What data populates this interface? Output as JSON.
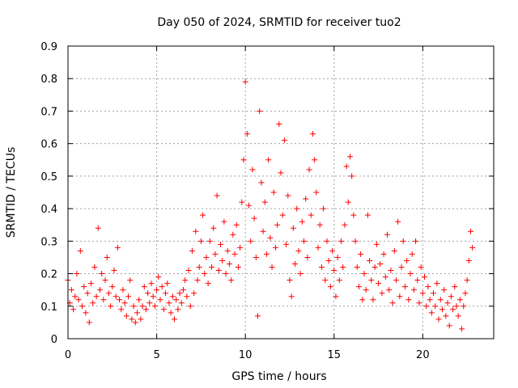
{
  "chart_data": {
    "type": "scatter",
    "title": "Day 050 of 2024, SRMTID for receiver tuo2",
    "xlabel": "GPS time / hours",
    "ylabel": "SRMTID / TECUs",
    "xlim": [
      0,
      24
    ],
    "ylim": [
      0,
      0.9
    ],
    "xticks": [
      0,
      5,
      10,
      15,
      20
    ],
    "xtick_labels": [
      "0",
      "5",
      "10",
      "15",
      "20"
    ],
    "yticks": [
      0,
      0.1,
      0.2,
      0.3,
      0.4,
      0.5,
      0.6,
      0.7,
      0.8,
      0.9
    ],
    "ytick_labels": [
      "0",
      "0.1",
      "0.2",
      "0.3",
      "0.4",
      "0.5",
      "0.6",
      "0.7",
      "0.8",
      "0.9"
    ],
    "grid": true,
    "marker": "+",
    "color": "#ff0000",
    "series": [
      {
        "name": "SRMTID",
        "points": [
          [
            0.0,
            0.18
          ],
          [
            0.1,
            0.11
          ],
          [
            0.2,
            0.15
          ],
          [
            0.3,
            0.09
          ],
          [
            0.4,
            0.13
          ],
          [
            0.5,
            0.2
          ],
          [
            0.6,
            0.12
          ],
          [
            0.7,
            0.27
          ],
          [
            0.8,
            0.1
          ],
          [
            0.9,
            0.16
          ],
          [
            1.0,
            0.08
          ],
          [
            1.1,
            0.14
          ],
          [
            1.2,
            0.05
          ],
          [
            1.3,
            0.17
          ],
          [
            1.4,
            0.11
          ],
          [
            1.5,
            0.22
          ],
          [
            1.6,
            0.13
          ],
          [
            1.7,
            0.34
          ],
          [
            1.8,
            0.15
          ],
          [
            1.9,
            0.2
          ],
          [
            2.0,
            0.12
          ],
          [
            2.1,
            0.18
          ],
          [
            2.2,
            0.25
          ],
          [
            2.3,
            0.14
          ],
          [
            2.4,
            0.1
          ],
          [
            2.5,
            0.16
          ],
          [
            2.6,
            0.21
          ],
          [
            2.7,
            0.13
          ],
          [
            2.8,
            0.28
          ],
          [
            2.9,
            0.12
          ],
          [
            3.0,
            0.09
          ],
          [
            3.1,
            0.15
          ],
          [
            3.2,
            0.11
          ],
          [
            3.3,
            0.07
          ],
          [
            3.4,
            0.13
          ],
          [
            3.5,
            0.18
          ],
          [
            3.6,
            0.06
          ],
          [
            3.7,
            0.1
          ],
          [
            3.8,
            0.05
          ],
          [
            3.9,
            0.08
          ],
          [
            4.0,
            0.12
          ],
          [
            4.1,
            0.06
          ],
          [
            4.2,
            0.1
          ],
          [
            4.3,
            0.16
          ],
          [
            4.4,
            0.09
          ],
          [
            4.5,
            0.14
          ],
          [
            4.6,
            0.11
          ],
          [
            4.7,
            0.17
          ],
          [
            4.8,
            0.13
          ],
          [
            4.9,
            0.1
          ],
          [
            5.0,
            0.15
          ],
          [
            5.1,
            0.19
          ],
          [
            5.2,
            0.12
          ],
          [
            5.3,
            0.16
          ],
          [
            5.4,
            0.09
          ],
          [
            5.5,
            0.14
          ],
          [
            5.6,
            0.17
          ],
          [
            5.7,
            0.11
          ],
          [
            5.8,
            0.08
          ],
          [
            5.9,
            0.13
          ],
          [
            6.0,
            0.06
          ],
          [
            6.1,
            0.12
          ],
          [
            6.2,
            0.09
          ],
          [
            6.3,
            0.14
          ],
          [
            6.4,
            0.11
          ],
          [
            6.5,
            0.15
          ],
          [
            6.6,
            0.18
          ],
          [
            6.7,
            0.13
          ],
          [
            6.8,
            0.21
          ],
          [
            6.9,
            0.1
          ],
          [
            7.0,
            0.27
          ],
          [
            7.1,
            0.14
          ],
          [
            7.2,
            0.33
          ],
          [
            7.3,
            0.18
          ],
          [
            7.4,
            0.22
          ],
          [
            7.5,
            0.3
          ],
          [
            7.6,
            0.38
          ],
          [
            7.7,
            0.2
          ],
          [
            7.8,
            0.25
          ],
          [
            7.9,
            0.17
          ],
          [
            8.0,
            0.3
          ],
          [
            8.1,
            0.22
          ],
          [
            8.2,
            0.34
          ],
          [
            8.3,
            0.26
          ],
          [
            8.4,
            0.44
          ],
          [
            8.5,
            0.21
          ],
          [
            8.6,
            0.29
          ],
          [
            8.7,
            0.24
          ],
          [
            8.8,
            0.36
          ],
          [
            8.9,
            0.2
          ],
          [
            9.0,
            0.27
          ],
          [
            9.1,
            0.23
          ],
          [
            9.2,
            0.18
          ],
          [
            9.3,
            0.32
          ],
          [
            9.4,
            0.26
          ],
          [
            9.5,
            0.35
          ],
          [
            9.6,
            0.22
          ],
          [
            9.7,
            0.28
          ],
          [
            9.8,
            0.42
          ],
          [
            9.9,
            0.55
          ],
          [
            10.0,
            0.79
          ],
          [
            10.1,
            0.63
          ],
          [
            10.2,
            0.41
          ],
          [
            10.3,
            0.3
          ],
          [
            10.4,
            0.52
          ],
          [
            10.5,
            0.37
          ],
          [
            10.6,
            0.25
          ],
          [
            10.7,
            0.07
          ],
          [
            10.8,
            0.7
          ],
          [
            10.9,
            0.48
          ],
          [
            11.0,
            0.33
          ],
          [
            11.1,
            0.42
          ],
          [
            11.2,
            0.26
          ],
          [
            11.3,
            0.55
          ],
          [
            11.4,
            0.31
          ],
          [
            11.5,
            0.22
          ],
          [
            11.6,
            0.45
          ],
          [
            11.7,
            0.28
          ],
          [
            11.8,
            0.35
          ],
          [
            11.9,
            0.66
          ],
          [
            12.0,
            0.51
          ],
          [
            12.1,
            0.38
          ],
          [
            12.2,
            0.61
          ],
          [
            12.3,
            0.29
          ],
          [
            12.4,
            0.44
          ],
          [
            12.5,
            0.18
          ],
          [
            12.6,
            0.13
          ],
          [
            12.7,
            0.34
          ],
          [
            12.8,
            0.23
          ],
          [
            12.9,
            0.4
          ],
          [
            13.0,
            0.27
          ],
          [
            13.1,
            0.2
          ],
          [
            13.2,
            0.36
          ],
          [
            13.3,
            0.3
          ],
          [
            13.4,
            0.43
          ],
          [
            13.5,
            0.25
          ],
          [
            13.6,
            0.52
          ],
          [
            13.7,
            0.38
          ],
          [
            13.8,
            0.63
          ],
          [
            13.9,
            0.55
          ],
          [
            14.0,
            0.45
          ],
          [
            14.1,
            0.28
          ],
          [
            14.2,
            0.35
          ],
          [
            14.3,
            0.22
          ],
          [
            14.4,
            0.4
          ],
          [
            14.5,
            0.18
          ],
          [
            14.6,
            0.3
          ],
          [
            14.7,
            0.24
          ],
          [
            14.8,
            0.16
          ],
          [
            14.9,
            0.27
          ],
          [
            15.0,
            0.21
          ],
          [
            15.1,
            0.13
          ],
          [
            15.2,
            0.25
          ],
          [
            15.3,
            0.18
          ],
          [
            15.4,
            0.3
          ],
          [
            15.5,
            0.22
          ],
          [
            15.6,
            0.35
          ],
          [
            15.7,
            0.53
          ],
          [
            15.8,
            0.42
          ],
          [
            15.9,
            0.56
          ],
          [
            16.0,
            0.5
          ],
          [
            16.1,
            0.38
          ],
          [
            16.2,
            0.3
          ],
          [
            16.3,
            0.22
          ],
          [
            16.4,
            0.16
          ],
          [
            16.5,
            0.26
          ],
          [
            16.6,
            0.12
          ],
          [
            16.7,
            0.2
          ],
          [
            16.8,
            0.15
          ],
          [
            16.9,
            0.38
          ],
          [
            17.0,
            0.24
          ],
          [
            17.1,
            0.18
          ],
          [
            17.2,
            0.12
          ],
          [
            17.3,
            0.22
          ],
          [
            17.4,
            0.29
          ],
          [
            17.5,
            0.17
          ],
          [
            17.6,
            0.23
          ],
          [
            17.7,
            0.14
          ],
          [
            17.8,
            0.26
          ],
          [
            17.9,
            0.19
          ],
          [
            18.0,
            0.32
          ],
          [
            18.1,
            0.15
          ],
          [
            18.2,
            0.21
          ],
          [
            18.3,
            0.11
          ],
          [
            18.4,
            0.27
          ],
          [
            18.5,
            0.18
          ],
          [
            18.6,
            0.36
          ],
          [
            18.7,
            0.13
          ],
          [
            18.8,
            0.22
          ],
          [
            18.9,
            0.3
          ],
          [
            19.0,
            0.16
          ],
          [
            19.1,
            0.24
          ],
          [
            19.2,
            0.12
          ],
          [
            19.3,
            0.2
          ],
          [
            19.4,
            0.26
          ],
          [
            19.5,
            0.15
          ],
          [
            19.6,
            0.3
          ],
          [
            19.7,
            0.18
          ],
          [
            19.8,
            0.11
          ],
          [
            19.9,
            0.22
          ],
          [
            20.0,
            0.14
          ],
          [
            20.1,
            0.19
          ],
          [
            20.2,
            0.1
          ],
          [
            20.3,
            0.16
          ],
          [
            20.4,
            0.12
          ],
          [
            20.5,
            0.08
          ],
          [
            20.6,
            0.14
          ],
          [
            20.7,
            0.1
          ],
          [
            20.8,
            0.17
          ],
          [
            20.9,
            0.06
          ],
          [
            21.0,
            0.12
          ],
          [
            21.1,
            0.09
          ],
          [
            21.2,
            0.15
          ],
          [
            21.3,
            0.07
          ],
          [
            21.4,
            0.11
          ],
          [
            21.5,
            0.04
          ],
          [
            21.6,
            0.13
          ],
          [
            21.7,
            0.09
          ],
          [
            21.8,
            0.16
          ],
          [
            21.9,
            0.1
          ],
          [
            22.0,
            0.07
          ],
          [
            22.1,
            0.12
          ],
          [
            22.2,
            0.03
          ],
          [
            22.3,
            0.1
          ],
          [
            22.4,
            0.14
          ],
          [
            22.5,
            0.18
          ],
          [
            22.6,
            0.24
          ],
          [
            22.7,
            0.33
          ],
          [
            22.8,
            0.28
          ]
        ]
      }
    ]
  }
}
